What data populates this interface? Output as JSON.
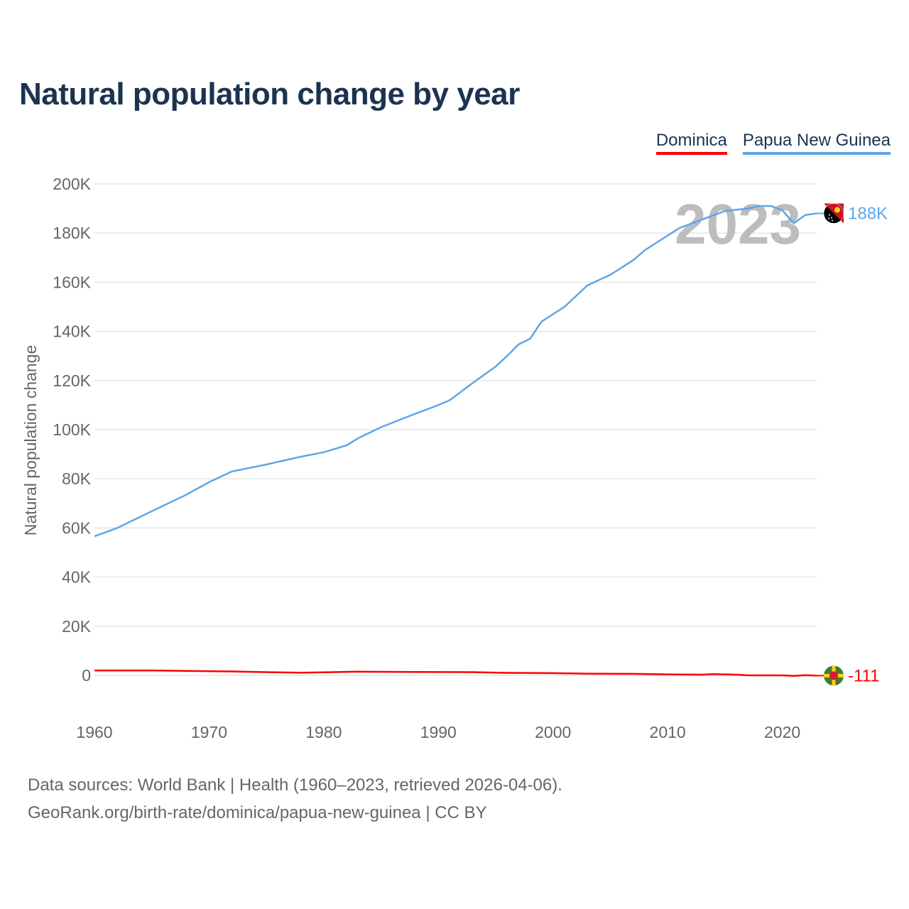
{
  "title": "Natural population change by year",
  "legend": [
    {
      "label": "Dominica",
      "color": "#ff0000"
    },
    {
      "label": "Papua New Guinea",
      "color": "#5ea6e8"
    }
  ],
  "footer": {
    "line1": "Data sources: World Bank | Health (1960–2023, retrieved 2026-04-06).",
    "line2": "GeoRank.org/birth-rate/dominica/papua-new-guinea | CC BY"
  },
  "chart_data": {
    "type": "line",
    "title": "Natural population change by year",
    "xlabel": "",
    "ylabel": "Natural population change",
    "xlim": [
      1960,
      2023
    ],
    "ylim": [
      0,
      200000
    ],
    "x_ticks": [
      "1960",
      "1970",
      "1980",
      "1990",
      "2000",
      "2010",
      "2020"
    ],
    "y_ticks": [
      "0",
      "20K",
      "40K",
      "60K",
      "80K",
      "100K",
      "120K",
      "140K",
      "160K",
      "180K",
      "200K"
    ],
    "year_watermark": "2023",
    "grid": true,
    "legend_position": "top-right",
    "series": [
      {
        "name": "Papua New Guinea",
        "color": "#5ea6e8",
        "end_label": "188K",
        "points": [
          [
            1960,
            56600
          ],
          [
            1962,
            60000
          ],
          [
            1965,
            66800
          ],
          [
            1968,
            73500
          ],
          [
            1970,
            78600
          ],
          [
            1972,
            83000
          ],
          [
            1975,
            85800
          ],
          [
            1978,
            89000
          ],
          [
            1980,
            90800
          ],
          [
            1982,
            93600
          ],
          [
            1983,
            96500
          ],
          [
            1985,
            101000
          ],
          [
            1988,
            106500
          ],
          [
            1990,
            110000
          ],
          [
            1991,
            112000
          ],
          [
            1992,
            115500
          ],
          [
            1993,
            119000
          ],
          [
            1995,
            125700
          ],
          [
            1996,
            130000
          ],
          [
            1997,
            134700
          ],
          [
            1998,
            137000
          ],
          [
            1999,
            144000
          ],
          [
            2001,
            150000
          ],
          [
            2003,
            158700
          ],
          [
            2005,
            163000
          ],
          [
            2007,
            169000
          ],
          [
            2008,
            173000
          ],
          [
            2009,
            176000
          ],
          [
            2010,
            179000
          ],
          [
            2011,
            182000
          ],
          [
            2013,
            185500
          ],
          [
            2015,
            189000
          ],
          [
            2017,
            190000
          ],
          [
            2018,
            191000
          ],
          [
            2019,
            191000
          ],
          [
            2020,
            189300
          ],
          [
            2021,
            184000
          ],
          [
            2022,
            187300
          ],
          [
            2023,
            188000
          ]
        ]
      },
      {
        "name": "Dominica",
        "color": "#ff0000",
        "end_label": "-111",
        "points": [
          [
            1960,
            2000
          ],
          [
            1965,
            2000
          ],
          [
            1970,
            1700
          ],
          [
            1972,
            1600
          ],
          [
            1975,
            1300
          ],
          [
            1978,
            1100
          ],
          [
            1980,
            1200
          ],
          [
            1983,
            1500
          ],
          [
            1988,
            1400
          ],
          [
            1993,
            1300
          ],
          [
            1996,
            1000
          ],
          [
            2000,
            900
          ],
          [
            2003,
            700
          ],
          [
            2007,
            600
          ],
          [
            2010,
            400
          ],
          [
            2013,
            300
          ],
          [
            2014,
            500
          ],
          [
            2016,
            300
          ],
          [
            2017,
            0
          ],
          [
            2020,
            0
          ],
          [
            2021,
            -200
          ],
          [
            2022,
            100
          ],
          [
            2023,
            -111
          ]
        ]
      }
    ]
  }
}
